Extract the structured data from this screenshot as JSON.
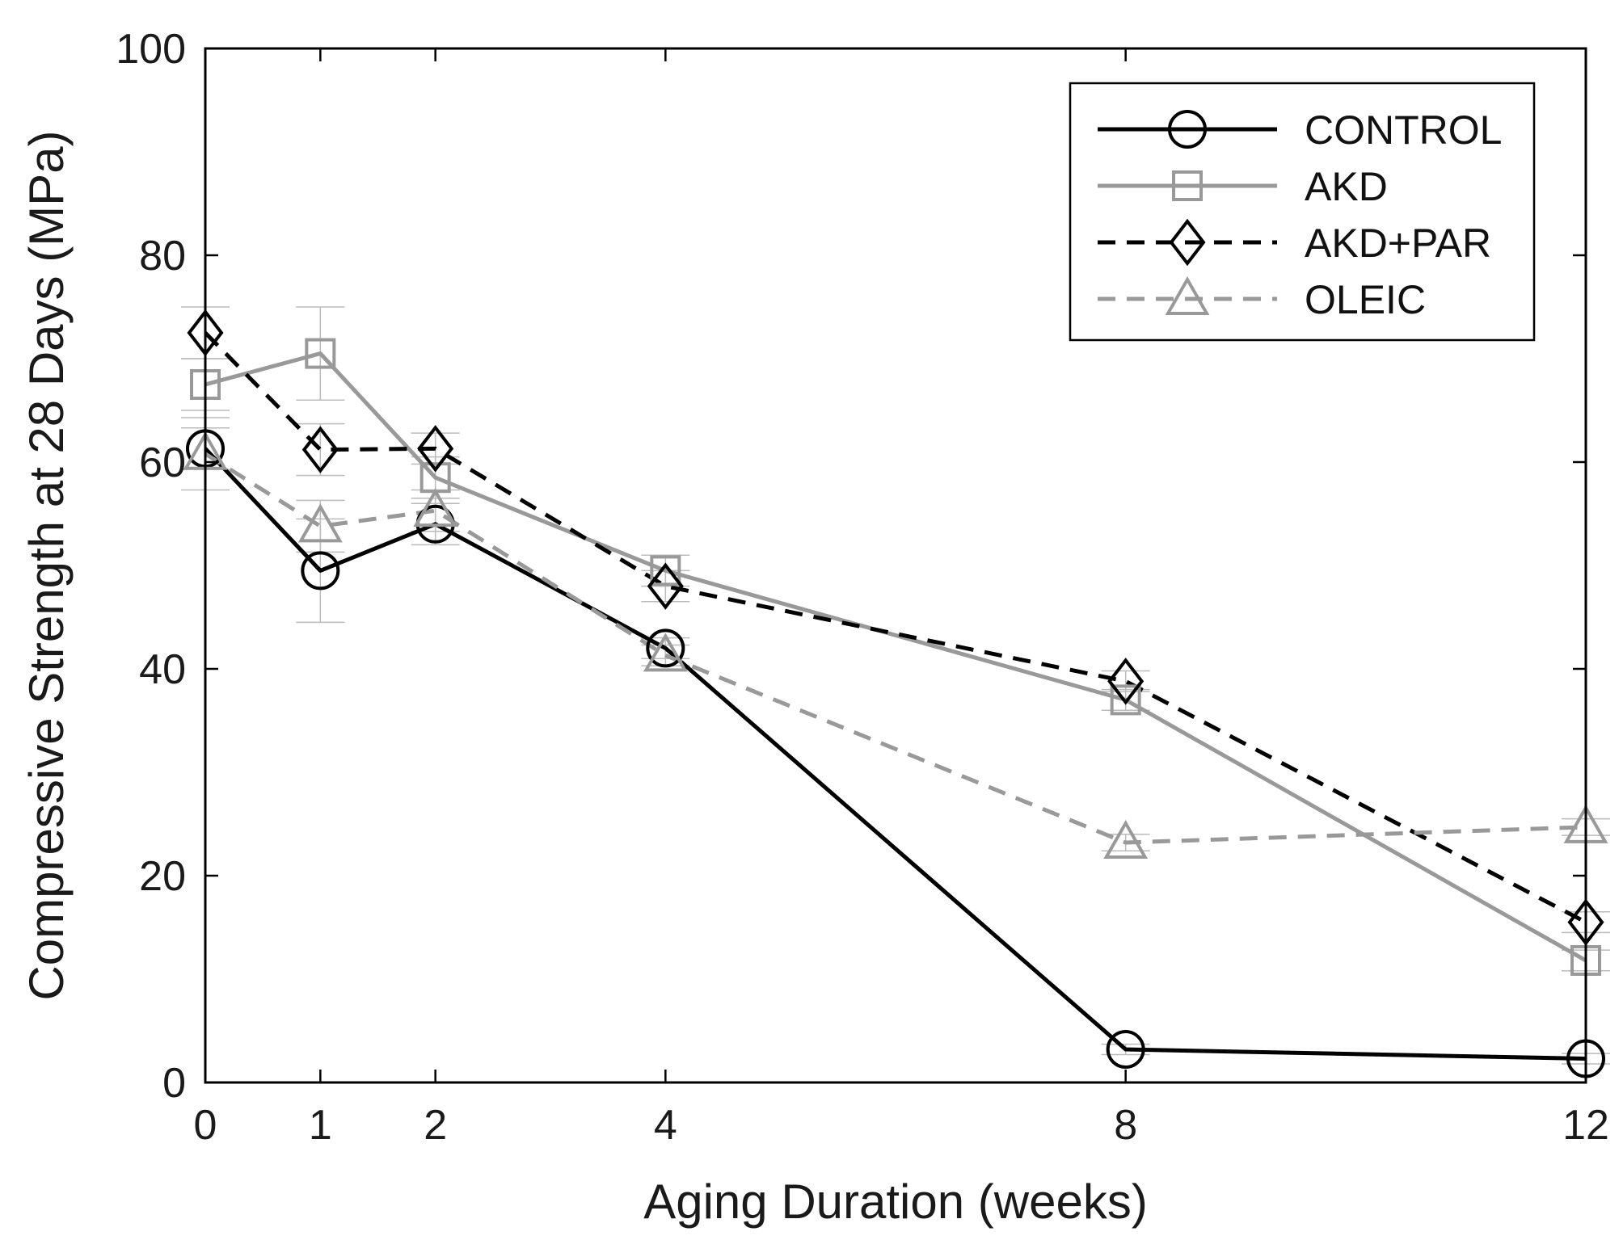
{
  "chart_data": {
    "type": "line",
    "title": "",
    "xlabel": "Aging Duration (weeks)",
    "ylabel": "Compressive Strength at 28 Days (MPa)",
    "x": [
      0,
      1,
      2,
      4,
      8,
      12
    ],
    "xlim": [
      0,
      12
    ],
    "ylim": [
      0,
      100
    ],
    "xticks": [
      0,
      1,
      2,
      4,
      8,
      12
    ],
    "xtick_labels": [
      "0",
      "1",
      "2",
      "4",
      "8",
      "12"
    ],
    "yticks": [
      0,
      20,
      40,
      60,
      80,
      100
    ],
    "ytick_labels": [
      "0",
      "20",
      "40",
      "60",
      "80",
      "100"
    ],
    "grid": false,
    "legend_position": "top-right",
    "series": [
      {
        "name": "CONTROL",
        "values": [
          61.3,
          49.5,
          54.0,
          42.0,
          3.2,
          2.3
        ],
        "errors": [
          2.0,
          5.0,
          2.0,
          1.0,
          0.5,
          0.5
        ],
        "color": "#000000",
        "line_style": "solid",
        "marker": "circle"
      },
      {
        "name": "AKD",
        "values": [
          67.5,
          70.5,
          58.5,
          49.5,
          37.0,
          11.8
        ],
        "errors": [
          2.5,
          4.5,
          2.0,
          1.5,
          1.0,
          1.0
        ],
        "color": "#999999",
        "line_style": "solid",
        "marker": "square"
      },
      {
        "name": "AKD+PAR",
        "values": [
          72.5,
          61.2,
          61.3,
          48.0,
          38.8,
          15.5
        ],
        "errors": [
          2.5,
          2.5,
          1.5,
          1.5,
          1.0,
          1.0
        ],
        "color": "#000000",
        "line_style": "dashed",
        "marker": "diamond"
      },
      {
        "name": "OLEIC",
        "values": [
          60.8,
          53.8,
          55.3,
          41.3,
          23.2,
          24.7
        ],
        "errors": [
          3.5,
          2.5,
          2.0,
          1.0,
          0.8,
          0.8
        ],
        "color": "#999999",
        "line_style": "dashed",
        "marker": "triangle"
      }
    ]
  }
}
